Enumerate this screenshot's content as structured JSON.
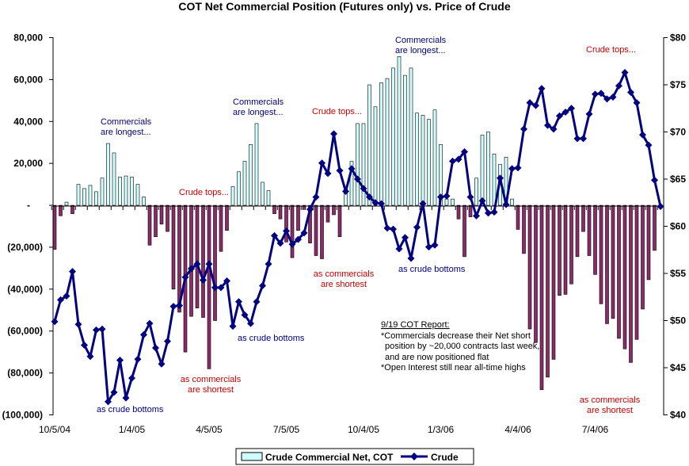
{
  "chart_data": {
    "type": "bar+line",
    "title": "COT Net Commercial Position (Futures only) vs. Price of Crude",
    "x_tick_labels": [
      "10/5/04",
      "1/4/05",
      "4/5/05",
      "7/5/05",
      "10/4/05",
      "1/3/06",
      "4/4/06",
      "7/4/06"
    ],
    "y_left": {
      "ylim": [
        -100000,
        80000
      ],
      "tick_labels": [
        "80,000",
        "60,000",
        "40,000",
        "20,000",
        "-",
        "(20,000)",
        "(40,000)",
        "(60,000)",
        "(80,000)",
        "(100,000)"
      ]
    },
    "y_right": {
      "ylim": [
        40,
        80
      ],
      "tick_labels": [
        "$80",
        "$75",
        "$70",
        "$65",
        "$60",
        "$55",
        "$50",
        "$45",
        "$40"
      ]
    },
    "grid": false,
    "legend_position": "bottom",
    "series": [
      {
        "name": "Crude Commercial Net, COT",
        "type": "bar",
        "axis": "left",
        "color_positive": "#ccffff",
        "color_negative": "#8c2a6a",
        "values": [
          -21000,
          -5000,
          1500,
          -4000,
          10000,
          8000,
          9500,
          6500,
          13000,
          29500,
          25000,
          13500,
          14000,
          13500,
          10000,
          4000,
          -19000,
          -15000,
          -9000,
          -12500,
          -40000,
          -51000,
          -70000,
          -53000,
          -49000,
          -53500,
          -78000,
          -55000,
          -22000,
          -12000,
          9000,
          16000,
          21000,
          29000,
          39000,
          11000,
          7000,
          -4000,
          -6500,
          -17500,
          -25000,
          -12000,
          -2000,
          -18000,
          -24000,
          -25500,
          -8000,
          -4500,
          -15000,
          8000,
          21000,
          39000,
          39000,
          57500,
          47000,
          58500,
          60500,
          65500,
          71000,
          62000,
          65500,
          44000,
          43000,
          41000,
          45500,
          29000,
          3000,
          3000,
          -6500,
          -24500,
          -5500,
          13000,
          33500,
          35000,
          24500,
          19500,
          23000,
          3000,
          -11500,
          -23000,
          -59000,
          -65500,
          -88000,
          -82000,
          -73500,
          -43000,
          -42500,
          -37500,
          -24500,
          -12500,
          -24000,
          -33000,
          -47000,
          -56500,
          -54000,
          -63500,
          -68500,
          -75000,
          -64000,
          -49500,
          -35500,
          -21500,
          0
        ]
      },
      {
        "name": "Crude",
        "type": "line",
        "axis": "right",
        "color": "#000080",
        "marker": "diamond",
        "values": [
          49.9,
          52.2,
          52.6,
          55.2,
          49.6,
          47.4,
          46.2,
          49.0,
          49.1,
          41.4,
          42.4,
          45.8,
          41.8,
          43.9,
          45.9,
          48.5,
          49.7,
          47.1,
          45.4,
          47.8,
          51.5,
          51.6,
          54.6,
          55.5,
          56.0,
          54.3,
          56.0,
          53.5,
          53.5,
          54.2,
          49.4,
          52.0,
          50.6,
          49.7,
          52.0,
          53.7,
          56.0,
          59.0,
          58.2,
          59.5,
          58.1,
          58.6,
          59.3,
          61.8,
          63.1,
          66.7,
          65.6,
          69.8,
          65.9,
          63.7,
          66.1,
          65.0,
          64.0,
          63.1,
          62.5,
          62.4,
          59.8,
          59.7,
          57.6,
          58.8,
          56.6,
          59.9,
          62.4,
          57.8,
          58.0,
          63.1,
          63.2,
          66.9,
          67.1,
          67.9,
          63.1,
          61.1,
          62.7,
          61.4,
          61.5,
          65.1,
          62.3,
          66.1,
          66.2,
          70.3,
          73.1,
          72.8,
          74.6,
          70.7,
          70.3,
          71.7,
          72.1,
          72.5,
          69.3,
          69.3,
          71.9,
          74.0,
          74.1,
          73.5,
          73.7,
          74.9,
          76.3,
          74.2,
          73.1,
          69.7,
          68.6,
          64.9,
          62.1
        ]
      }
    ],
    "annotations": {
      "longest1": [
        "Commercials",
        "are longest..."
      ],
      "longest2": [
        "Commercials",
        "are longest..."
      ],
      "longest3": [
        "Commercials",
        "are longest..."
      ],
      "tops1": "Crude tops...",
      "tops2": "Crude tops...",
      "tops3": "Crude tops...",
      "shortest1": [
        "as commercials",
        "are shortest"
      ],
      "shortest2": [
        "as commercials",
        "are shortest"
      ],
      "shortest3": [
        "as commercials",
        "are shortest"
      ],
      "bottoms1": "as crude bottoms",
      "bottoms2": "as crude bottoms",
      "bottoms3": "as crude bottoms",
      "note": {
        "heading": "9/19 COT Report:",
        "lines": [
          "*Commercials decrease their Net short",
          "position by ~20,000 contracts last week,",
          "and are now positioned flat",
          "*Open Interest still near all-time highs"
        ]
      },
      "color_long_bottom": "#000080",
      "color_top_short": "#cc0000"
    }
  }
}
